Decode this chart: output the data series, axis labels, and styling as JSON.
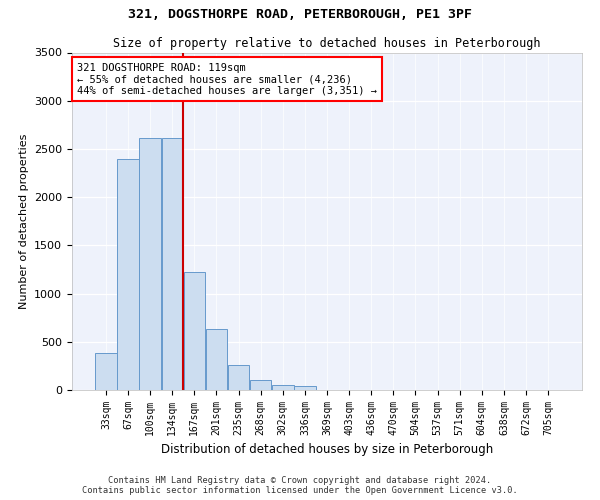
{
  "title1": "321, DOGSTHORPE ROAD, PETERBOROUGH, PE1 3PF",
  "title2": "Size of property relative to detached houses in Peterborough",
  "xlabel": "Distribution of detached houses by size in Peterborough",
  "ylabel": "Number of detached properties",
  "footer1": "Contains HM Land Registry data © Crown copyright and database right 2024.",
  "footer2": "Contains public sector information licensed under the Open Government Licence v3.0.",
  "annotation_line1": "321 DOGSTHORPE ROAD: 119sqm",
  "annotation_line2": "← 55% of detached houses are smaller (4,236)",
  "annotation_line3": "44% of semi-detached houses are larger (3,351) →",
  "bar_labels": [
    "33sqm",
    "67sqm",
    "100sqm",
    "134sqm",
    "167sqm",
    "201sqm",
    "235sqm",
    "268sqm",
    "302sqm",
    "336sqm",
    "369sqm",
    "403sqm",
    "436sqm",
    "470sqm",
    "504sqm",
    "537sqm",
    "571sqm",
    "604sqm",
    "638sqm",
    "672sqm",
    "705sqm"
  ],
  "bar_values": [
    380,
    2400,
    2610,
    2610,
    1220,
    630,
    260,
    100,
    55,
    40,
    0,
    0,
    0,
    0,
    0,
    0,
    0,
    0,
    0,
    0,
    0
  ],
  "bar_color": "#ccddf0",
  "bar_edge_color": "#6699cc",
  "vline_x": 3.5,
  "vline_color": "#cc0000",
  "background_color": "#eef2fb",
  "ylim": [
    0,
    3500
  ],
  "yticks": [
    0,
    500,
    1000,
    1500,
    2000,
    2500,
    3000,
    3500
  ],
  "property_size": 119
}
